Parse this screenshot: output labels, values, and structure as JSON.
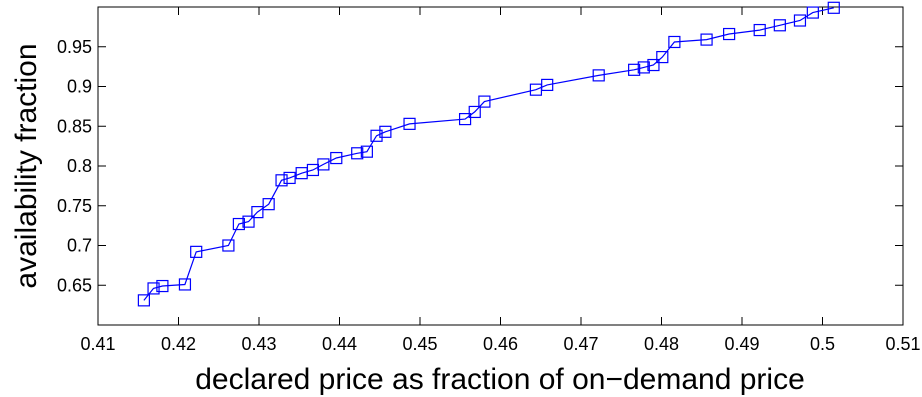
{
  "chart_data": {
    "type": "line",
    "title": "",
    "xlabel": "declared price as fraction of on−demand price",
    "ylabel": "availability fraction",
    "xlim": [
      0.41,
      0.51
    ],
    "ylim": [
      0.6,
      1.0
    ],
    "xticks": [
      0.41,
      0.42,
      0.43,
      0.44,
      0.45,
      0.46,
      0.47,
      0.48,
      0.49,
      0.5,
      0.51
    ],
    "xtick_labels": [
      "0.41",
      "0.42",
      "0.43",
      "0.44",
      "0.45",
      "0.46",
      "0.47",
      "0.48",
      "0.49",
      "0.5",
      "0.51"
    ],
    "yticks": [
      0.65,
      0.7,
      0.75,
      0.8,
      0.85,
      0.9,
      0.95
    ],
    "ytick_labels": [
      "0.65",
      "0.7",
      "0.75",
      "0.8",
      "0.85",
      "0.9",
      "0.95"
    ],
    "grid": false,
    "legend": "none",
    "series": [
      {
        "color": "#0000ff",
        "marker": "square",
        "x": [
          0.4157,
          0.4169,
          0.418,
          0.4208,
          0.4222,
          0.4262,
          0.4275,
          0.4287,
          0.4298,
          0.4312,
          0.4328,
          0.4338,
          0.4353,
          0.4367,
          0.438,
          0.4396,
          0.4422,
          0.4434,
          0.4446,
          0.4457,
          0.4487,
          0.4556,
          0.4568,
          0.458,
          0.4644,
          0.4658,
          0.4722,
          0.4766,
          0.4778,
          0.479,
          0.4801,
          0.4816,
          0.4856,
          0.4884,
          0.4922,
          0.4947,
          0.4972,
          0.4988,
          0.5014
        ],
        "y": [
          0.631,
          0.646,
          0.649,
          0.651,
          0.692,
          0.7,
          0.727,
          0.73,
          0.742,
          0.752,
          0.782,
          0.785,
          0.791,
          0.795,
          0.802,
          0.81,
          0.816,
          0.818,
          0.838,
          0.843,
          0.853,
          0.859,
          0.868,
          0.881,
          0.896,
          0.902,
          0.914,
          0.921,
          0.924,
          0.927,
          0.937,
          0.956,
          0.959,
          0.966,
          0.971,
          0.977,
          0.983,
          0.993,
          0.999
        ]
      }
    ]
  }
}
